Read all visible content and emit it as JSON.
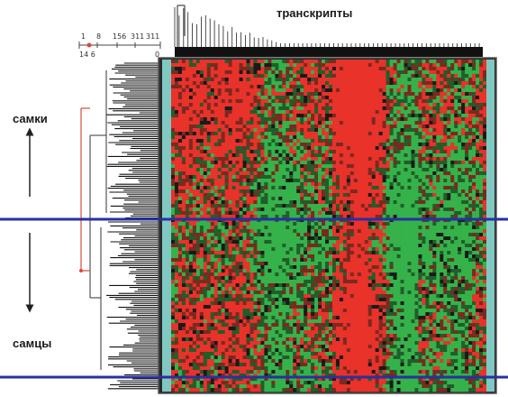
{
  "title": "транскрипты",
  "group_labels": {
    "top": "самки",
    "bottom": "самцы"
  },
  "dendrogram_scale": {
    "upper_ticks": [
      "1",
      "8",
      "156",
      "311",
      "311"
    ],
    "lower_ticks": [
      "14 6",
      "0"
    ]
  },
  "colors": {
    "up": "#e8322a",
    "down": "#36b24a",
    "neutral": "#1a1a1a",
    "separator": "#2a2fa0",
    "side_band": "#7fc9c2",
    "tree_accent": "#d94a3a"
  }
}
